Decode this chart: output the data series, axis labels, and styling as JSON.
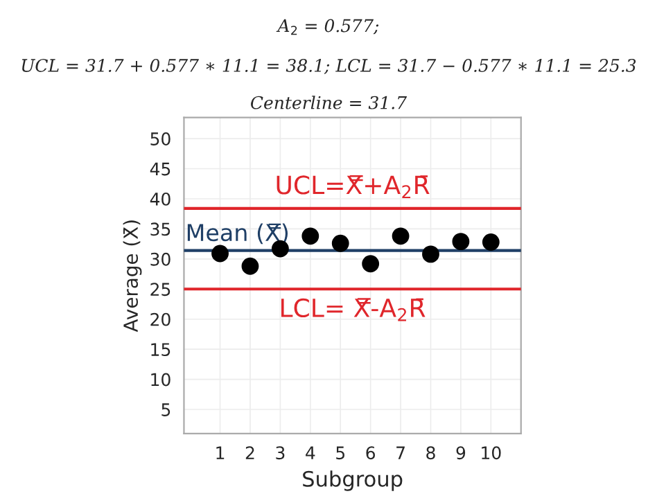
{
  "chart_data": {
    "type": "scatter",
    "annotations": [
      "A$_{2}$ = 0.577;",
      "UCL = 31.7 + 0.577 ∗ 11.1 = 38.1; LCL = 31.7 − 0.577 ∗ 11.1 = 25.3",
      "Centerline = 31.7"
    ],
    "xlabel": "Subgroup",
    "ylabel": "Average (X̄)",
    "x": [
      1,
      2,
      3,
      4,
      5,
      6,
      7,
      8,
      9,
      10
    ],
    "series": [
      {
        "color": "#000000",
        "values": [
          30.9,
          28.8,
          31.7,
          33.8,
          32.6,
          29.2,
          33.8,
          30.8,
          32.9,
          32.8
        ]
      }
    ],
    "marker": "circle",
    "xlim": [
      -0.2,
      11.0
    ],
    "xticks": [
      1,
      2,
      3,
      4,
      5,
      6,
      7,
      8,
      9,
      10
    ],
    "ylim": [
      1,
      53.5
    ],
    "yticks": [
      5,
      10,
      15,
      20,
      25,
      30,
      35,
      40,
      45,
      50
    ],
    "grid": true,
    "ref_lines": [
      {
        "axis": "y",
        "value": 38.4,
        "label": "UCL=X̿+A$_{2}$R̄",
        "color": "#e0262b"
      },
      {
        "axis": "y",
        "value": 31.4,
        "label": "Mean (X̿)",
        "color": "#1f3f66"
      },
      {
        "axis": "y",
        "value": 25.0,
        "label": "LCL= X̿-A$_{2}$R̄",
        "color": "#e0262b"
      }
    ]
  }
}
